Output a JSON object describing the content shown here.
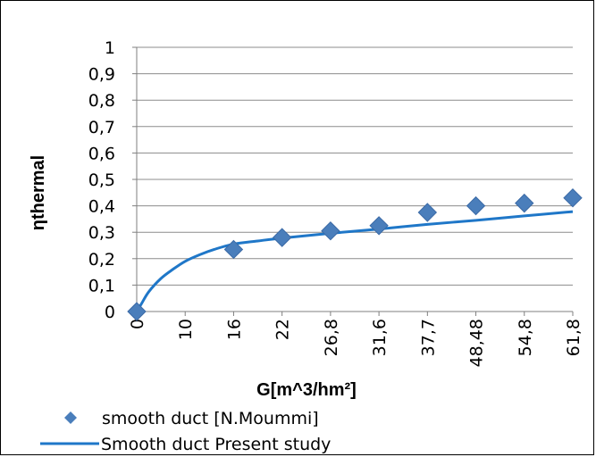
{
  "chart_data": {
    "type": "line",
    "xlabel": "G[m^3/hm²]",
    "ylabel": "ηthermal",
    "categories": [
      "0",
      "10",
      "16",
      "22",
      "26,8",
      "31,6",
      "37,7",
      "48,48",
      "54,8",
      "61,8"
    ],
    "yticks": [
      "0",
      "0,1",
      "0,2",
      "0,3",
      "0,4",
      "0,5",
      "0,6",
      "0,7",
      "0,8",
      "0,9",
      "1"
    ],
    "ylim": [
      0,
      1
    ],
    "grid": true,
    "legend_position": "bottom",
    "series": [
      {
        "name": "smooth duct [N.Moummi]",
        "kind": "scatter",
        "marker": "diamond",
        "color": "#4a7ebb",
        "points": [
          {
            "x": "0",
            "y": 0.0
          },
          {
            "x": "16",
            "y": 0.235
          },
          {
            "x": "22",
            "y": 0.28
          },
          {
            "x": "26,8",
            "y": 0.305
          },
          {
            "x": "31,6",
            "y": 0.325
          },
          {
            "x": "37,7",
            "y": 0.375
          },
          {
            "x": "48,48",
            "y": 0.4
          },
          {
            "x": "54,8",
            "y": 0.41
          },
          {
            "x": "61,8",
            "y": 0.43
          }
        ]
      },
      {
        "name": "Smooth duct Present study",
        "kind": "line",
        "color": "#1f77c8",
        "points": [
          {
            "i": 0.0,
            "y": 0.0
          },
          {
            "i": 0.1,
            "y": 0.03
          },
          {
            "i": 0.25,
            "y": 0.075
          },
          {
            "i": 0.5,
            "y": 0.125
          },
          {
            "i": 0.75,
            "y": 0.16
          },
          {
            "i": 1.0,
            "y": 0.19
          },
          {
            "i": 1.3,
            "y": 0.215
          },
          {
            "i": 1.6,
            "y": 0.235
          },
          {
            "i": 2.0,
            "y": 0.255
          },
          {
            "i": 2.5,
            "y": 0.267
          },
          {
            "i": 3.0,
            "y": 0.278
          },
          {
            "i": 4.0,
            "y": 0.296
          },
          {
            "i": 5.0,
            "y": 0.312
          },
          {
            "i": 6.0,
            "y": 0.33
          },
          {
            "i": 7.0,
            "y": 0.345
          },
          {
            "i": 8.0,
            "y": 0.362
          },
          {
            "i": 9.0,
            "y": 0.378
          }
        ]
      }
    ]
  }
}
